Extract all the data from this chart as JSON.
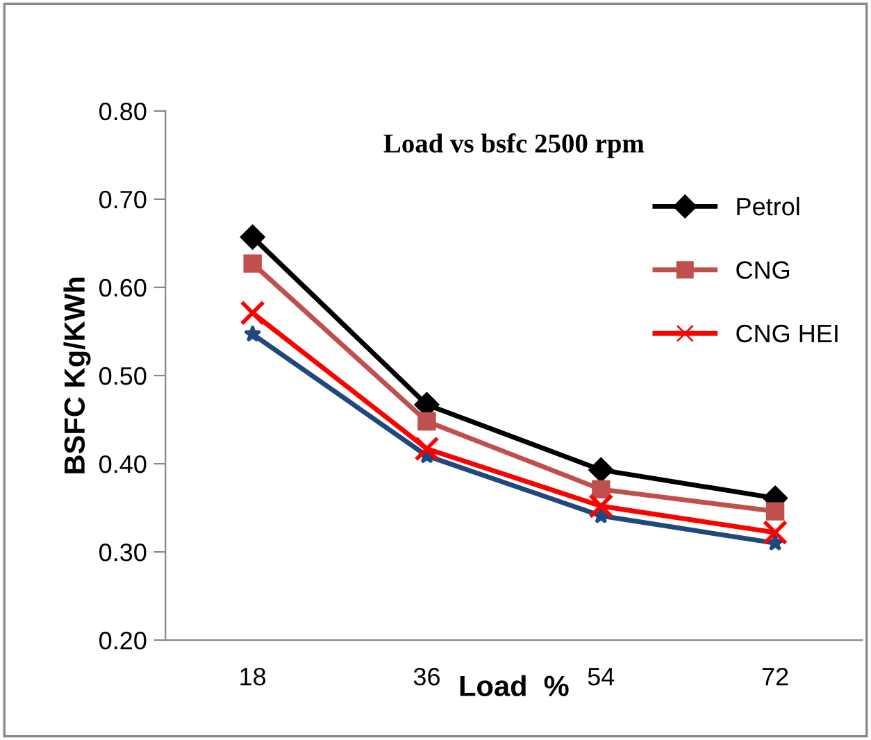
{
  "chart_data": {
    "type": "line",
    "title": "Load vs bsfc 2500 rpm",
    "xlabel": "Load  %",
    "ylabel": "BSFC Kg/KWh",
    "categories": [
      "18",
      "36",
      "54",
      "72"
    ],
    "ylim": [
      0.2,
      0.8
    ],
    "yticks": [
      {
        "value": 0.2,
        "label": "0.20"
      },
      {
        "value": 0.3,
        "label": "0.30"
      },
      {
        "value": 0.4,
        "label": "0.40"
      },
      {
        "value": 0.5,
        "label": "0.50"
      },
      {
        "value": 0.6,
        "label": "0.60"
      },
      {
        "value": 0.7,
        "label": "0.70"
      },
      {
        "value": 0.8,
        "label": "0.80"
      }
    ],
    "grid": false,
    "legend": "top right",
    "line_style": "solid",
    "series": [
      {
        "name": "Petrol",
        "color": "#000000",
        "marker": "diamond",
        "values": [
          0.657,
          0.467,
          0.393,
          0.361
        ]
      },
      {
        "name": "CNG",
        "color": "#c0504d",
        "marker": "square",
        "values": [
          0.627,
          0.448,
          0.371,
          0.346
        ]
      },
      {
        "name": "CNG HEI",
        "color": "#ff0000",
        "marker": "cross",
        "values": [
          0.571,
          0.417,
          0.352,
          0.322
        ]
      },
      {
        "color": "#1f497d",
        "marker": "star",
        "values": [
          0.547,
          0.409,
          0.341,
          0.31
        ]
      }
    ]
  }
}
